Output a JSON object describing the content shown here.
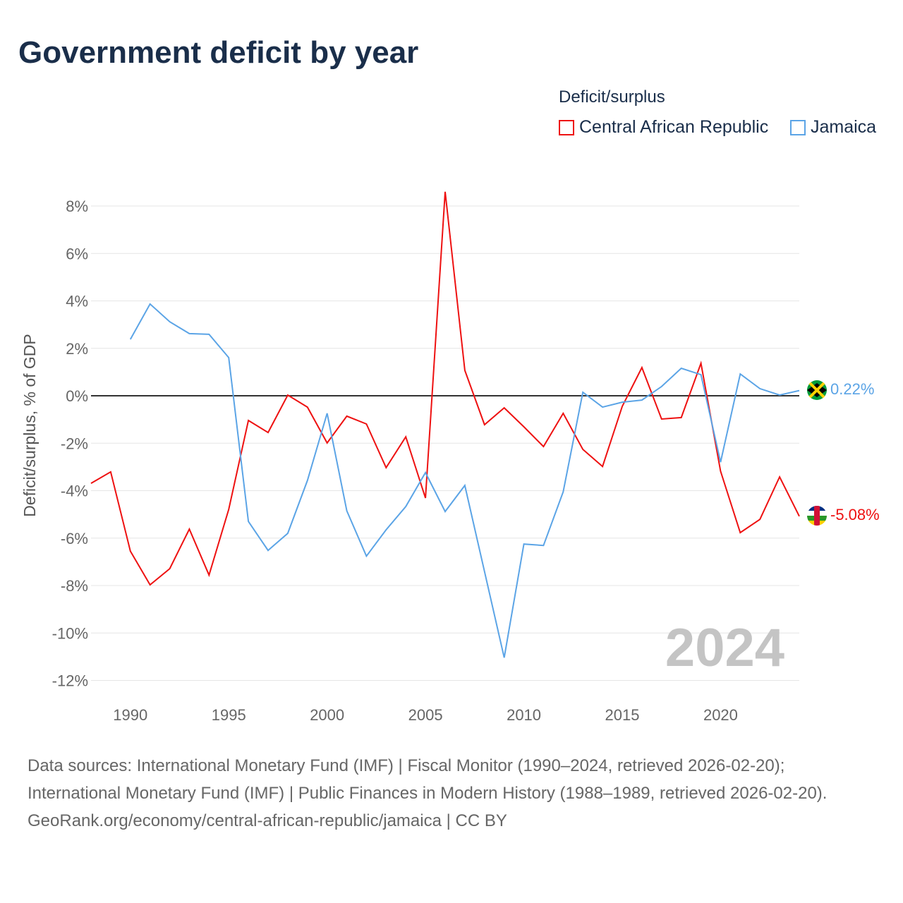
{
  "title": "Government deficit by year",
  "legend": {
    "title": "Deficit/surplus",
    "items": [
      "Central African Republic",
      "Jamaica"
    ]
  },
  "watermark_year": "2024",
  "end_labels": {
    "jamaica": "0.22%",
    "car": "-5.08%"
  },
  "source": {
    "line1": "Data sources: International Monetary Fund (IMF) | Fiscal Monitor (1990–2024, retrieved 2026-02-20); International Monetary Fund (IMF) | Public Finances in Modern History (1988–1989, retrieved 2026-02-20).",
    "line2": "GeoRank.org/economy/central-african-republic/jamaica | CC BY"
  },
  "colors": {
    "car": "#ee1111",
    "jamaica": "#5ba4e6"
  },
  "chart_data": {
    "type": "line",
    "title": "Government deficit by year",
    "xlabel": "",
    "ylabel": "Deficit/surplus, % of GDP",
    "xlim": [
      1988,
      2024
    ],
    "ylim": [
      -12,
      8
    ],
    "xticks": [
      1990,
      1995,
      2000,
      2005,
      2010,
      2015,
      2020
    ],
    "xtick_labels": [
      "1990",
      "1995",
      "2000",
      "2005",
      "2010",
      "2015",
      "2020"
    ],
    "yticks": [
      -12,
      -10,
      -8,
      -6,
      -4,
      -2,
      0,
      2,
      4,
      6,
      8
    ],
    "ytick_labels": [
      "-12%",
      "-10%",
      "-8%",
      "-6%",
      "-4%",
      "-2%",
      "0%",
      "2%",
      "4%",
      "6%",
      "8%"
    ],
    "legend_position": "top-right",
    "series": [
      {
        "name": "Central African Republic",
        "x": [
          1988,
          1989,
          1990,
          1991,
          1992,
          1993,
          1994,
          1995,
          1996,
          1997,
          1998,
          1999,
          2000,
          2001,
          2002,
          2003,
          2004,
          2005,
          2006,
          2007,
          2008,
          2009,
          2010,
          2011,
          2012,
          2013,
          2014,
          2015,
          2016,
          2017,
          2018,
          2019,
          2020,
          2021,
          2022,
          2023,
          2024
        ],
        "values": [
          -3.69,
          -3.21,
          -6.55,
          -7.97,
          -7.29,
          -5.62,
          -7.56,
          -4.79,
          -1.04,
          -1.55,
          0.03,
          -0.48,
          -1.99,
          -0.86,
          -1.19,
          -3.03,
          -1.73,
          -4.31,
          8.6,
          1.07,
          -1.22,
          -0.51,
          -1.31,
          -2.14,
          -0.74,
          -2.26,
          -2.98,
          -0.45,
          1.19,
          -0.98,
          -0.92,
          1.37,
          -3.18,
          -5.77,
          -5.21,
          -3.42,
          -5.08
        ]
      },
      {
        "name": "Jamaica",
        "x": [
          1990,
          1991,
          1992,
          1993,
          1994,
          1995,
          1996,
          1997,
          1998,
          1999,
          2000,
          2001,
          2002,
          2003,
          2004,
          2005,
          2006,
          2007,
          2008,
          2009,
          2010,
          2011,
          2012,
          2013,
          2014,
          2015,
          2016,
          2017,
          2018,
          2019,
          2020,
          2021,
          2022,
          2023,
          2024
        ],
        "values": [
          2.38,
          3.87,
          3.12,
          2.62,
          2.59,
          1.61,
          -5.3,
          -6.52,
          -5.8,
          -3.57,
          -0.74,
          -4.85,
          -6.76,
          -5.65,
          -4.67,
          -3.24,
          -4.88,
          -3.78,
          -7.41,
          -11.04,
          -6.25,
          -6.31,
          -4.05,
          0.15,
          -0.48,
          -0.27,
          -0.18,
          0.39,
          1.16,
          0.89,
          -2.8,
          0.92,
          0.3,
          0.03,
          0.22
        ]
      }
    ]
  }
}
